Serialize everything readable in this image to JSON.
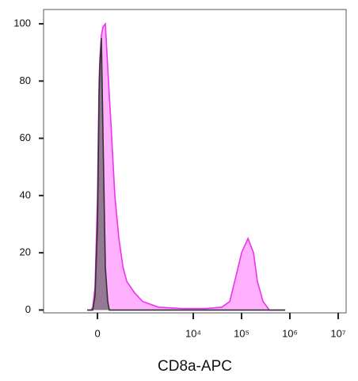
{
  "chart_data": {
    "type": "area",
    "x_label": "CD8a-APC",
    "x": [
      -106,
      -64,
      -47,
      -24,
      0,
      16,
      24,
      39,
      56,
      80,
      106,
      124,
      143,
      193,
      251,
      321,
      395,
      595,
      882,
      1897,
      5900,
      18300,
      38900,
      57000,
      77000,
      100000,
      136000,
      177000,
      213000,
      278000,
      375000,
      800000
    ],
    "series": [
      {
        "color": "#ee33ee",
        "fill": "#ffb0ff",
        "values": [
          0,
          0,
          1,
          8,
          40,
          80,
          88,
          96,
          99,
          100,
          85,
          75,
          65,
          40,
          25,
          15,
          10,
          6,
          3,
          1,
          0.5,
          0.5,
          1,
          3,
          12,
          20,
          25,
          20,
          10,
          3,
          0,
          0
        ]
      },
      {
        "color": "#333333",
        "fill": "rgba(90,90,90,0.65)",
        "values": [
          0,
          0,
          0,
          5,
          30,
          75,
          85,
          95,
          60,
          15,
          3,
          0,
          0,
          0,
          0,
          0,
          0,
          0,
          0,
          0,
          0,
          0,
          0,
          0,
          0,
          0,
          0,
          0,
          0,
          0,
          0,
          0
        ]
      }
    ],
    "xscale": "biexponential",
    "xlim": [
      -1350,
      14600000
    ],
    "xticks": [
      0,
      {
        "value": 10000,
        "label": "10⁴"
      },
      {
        "value": 100000,
        "label": "10⁵"
      },
      {
        "value": 1000000,
        "label": "10⁶"
      },
      {
        "value": 10000000,
        "label": "10⁷"
      }
    ],
    "ylim": [
      -1,
      105
    ],
    "yticks": [
      0,
      20,
      40,
      60,
      80,
      100
    ]
  }
}
